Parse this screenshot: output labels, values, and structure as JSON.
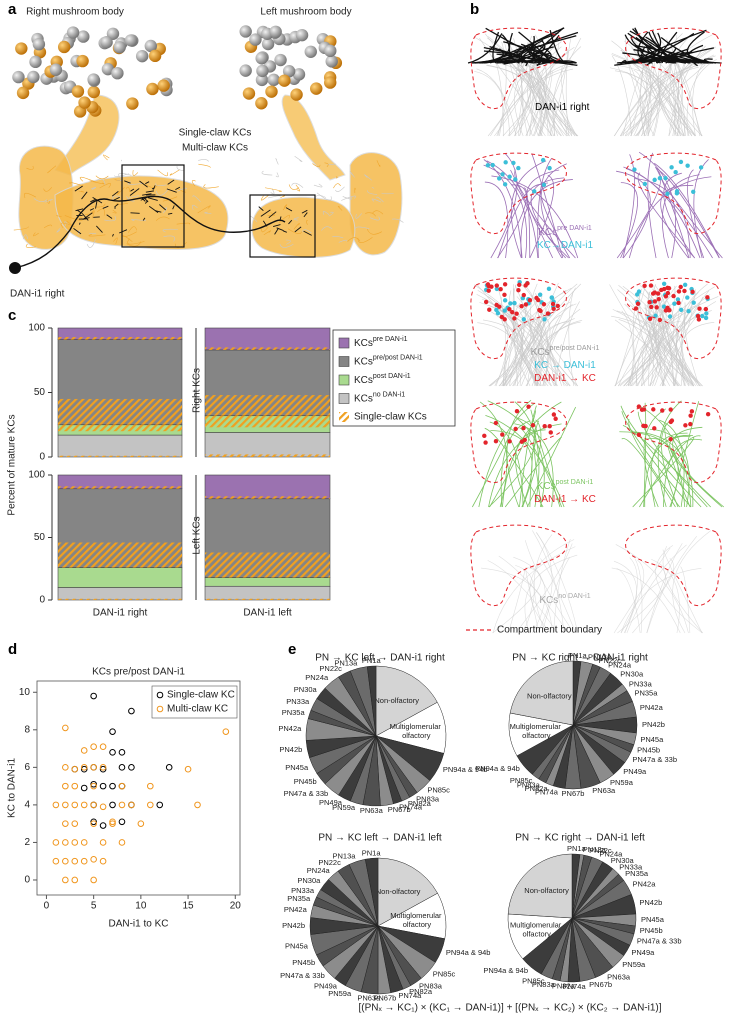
{
  "panels": {
    "a": {
      "letter": "a",
      "titles": [
        "Right mushroom body",
        "Left mushroom body"
      ],
      "legend": [
        "Single-claw KCs",
        "Multi-claw KCs"
      ],
      "legend_colors": [
        "#f0a020",
        "#a8a8a8"
      ],
      "neuron_label": "DAN-i1 right"
    },
    "b": {
      "letter": "b",
      "rows": [
        [
          {
            "text": "DAN-i1 right",
            "color": "#000000"
          }
        ],
        [
          {
            "text": "KCs",
            "sup": "pre DAN-i1",
            "color": "#9b6fb5"
          },
          {
            "text": "KC→DAN-i1",
            "color": "#3bbfd8"
          }
        ],
        [
          {
            "text": "KCs",
            "sup": "pre/post DAN-i1",
            "color": "#9a9a9a"
          },
          {
            "text": "KC → DAN-i1",
            "color": "#3bbfd8"
          },
          {
            "text": "DAN-i1 → KC",
            "color": "#e3242b"
          }
        ],
        [
          {
            "text": "KCs",
            "sup": "post DAN-i1",
            "color": "#7cc461"
          },
          {
            "text": "DAN-i1 → KC",
            "color": "#e3242b"
          }
        ],
        [
          {
            "text": "KCs",
            "sup": "no DAN-i1",
            "color": "#a8a8a8"
          }
        ]
      ],
      "boundary": "Compartment boundary"
    },
    "c": {
      "letter": "c"
    },
    "d": {
      "letter": "d"
    },
    "e": {
      "letter": "e",
      "formula": "[(PNₓ → KC₁) × (KC₁ → DAN-i1)] + [(PNₓ → KC₂) × (KC₂ → DAN-i1)]"
    }
  },
  "chart_data": [
    {
      "type": "stacked-bar",
      "ylabel": "Percent of mature KCs",
      "facets": [
        "Right KCs",
        "Left KCs"
      ],
      "categories": [
        "DAN-i1 right",
        "DAN-i1 left"
      ],
      "ylim": [
        0,
        100
      ],
      "yticks": [
        0,
        50,
        100
      ],
      "single_claw_name": "Single-claw KCs",
      "hatch_color": "#f0a020",
      "series": [
        {
          "name": "KCs",
          "superscript": "no DAN-i1",
          "color": "#c3c3c3",
          "values": [
            [
              17,
              19
            ],
            [
              10,
              11
            ]
          ],
          "single_claw": [
            [
              1,
              2
            ],
            [
              1,
              1
            ]
          ],
          "hatch_at": "bottom"
        },
        {
          "name": "KCs",
          "superscript": "post DAN-i1",
          "color": "#a9da8f",
          "values": [
            [
              8,
              13
            ],
            [
              16,
              7
            ]
          ],
          "single_claw": [
            [
              5,
              9
            ],
            [
              0,
              0
            ]
          ],
          "hatch_at": "top"
        },
        {
          "name": "KCs",
          "superscript": "pre/post DAN-i1",
          "color": "#858585",
          "values": [
            [
              66,
              51
            ],
            [
              63,
              63
            ]
          ],
          "single_claw": [
            [
              20,
              16
            ],
            [
              20,
              20
            ]
          ],
          "hatch_at": "bottom"
        },
        {
          "name": "KCs",
          "superscript": "pre DAN-i1",
          "color": "#9b72b0",
          "values": [
            [
              9,
              17
            ],
            [
              11,
              19
            ]
          ],
          "single_claw": [
            [
              2,
              2
            ],
            [
              2,
              2
            ]
          ],
          "hatch_at": "bottom"
        }
      ]
    },
    {
      "type": "scatter",
      "title": "KCs pre/post DAN-i1",
      "xlabel": "DAN-i1 to KC",
      "ylabel": "KC to DAN-i1",
      "xlim": [
        -1,
        20.5
      ],
      "ylim": [
        -0.8,
        10.6
      ],
      "xticks": [
        0,
        5,
        10,
        15,
        20
      ],
      "yticks": [
        0,
        2,
        4,
        6,
        8,
        10
      ],
      "legend": "upper right",
      "series": [
        {
          "name": "Single-claw KC",
          "color": "#000000",
          "x": [
            5,
            9,
            7,
            7,
            8,
            8,
            9,
            13,
            6,
            5,
            3,
            4,
            5,
            6,
            7,
            8,
            4,
            5,
            7,
            9,
            12,
            5,
            8,
            6
          ],
          "y": [
            9.8,
            9,
            7.9,
            6.8,
            6.8,
            6,
            6,
            6,
            5.9,
            6,
            5.9,
            5.9,
            5.1,
            5,
            5,
            5,
            4.9,
            4,
            4,
            4,
            4,
            3.1,
            3.1,
            2.9
          ]
        },
        {
          "name": "Multi-claw KC",
          "color": "#f0961e",
          "x": [
            2,
            19,
            5,
            6,
            4,
            2,
            4,
            5,
            6,
            3,
            15,
            2,
            3,
            5,
            8,
            11,
            1,
            2,
            3,
            4,
            5,
            6,
            8,
            9,
            11,
            16,
            2,
            3,
            5,
            7,
            10,
            1,
            2,
            3,
            4,
            6,
            8,
            1,
            2,
            3,
            4,
            6,
            2,
            3,
            5,
            5,
            7
          ],
          "y": [
            8.1,
            7.9,
            7.1,
            7.1,
            6.9,
            6,
            6,
            6,
            6,
            5.9,
            5.9,
            5,
            5,
            5,
            5,
            5,
            4,
            4,
            4,
            4,
            4,
            3.9,
            4,
            4,
            4,
            4,
            3,
            3,
            3,
            3,
            3,
            2,
            2,
            2,
            2,
            2,
            2,
            1,
            1,
            1,
            1,
            1,
            0,
            0,
            0,
            1.1,
            3.1
          ]
        }
      ]
    },
    {
      "type": "pie",
      "title": "PN → KC left → DAN-i1 right",
      "title_color": "#2f9a46",
      "categories": [
        "Non-olfactory",
        "Multiglomerular olfactory",
        "PN94a & 94b",
        "PN85c",
        "PN83a",
        "PN82a",
        "PN74a",
        "PN67b",
        "PN63a",
        "PN59a",
        "PN49a",
        "PN47a & 33b",
        "PN45b",
        "PN45a",
        "PN42b",
        "PN42a",
        "PN35a",
        "PN33a",
        "PN30a",
        "PN24a",
        "PN22c",
        "PN13a",
        "PN1a"
      ],
      "values": [
        17,
        12,
        7,
        4,
        2,
        2,
        2,
        3,
        4,
        3,
        3,
        4,
        3,
        4,
        4,
        5,
        2,
        3,
        3,
        4,
        3,
        4,
        2
      ],
      "colors": [
        "#d4d4d4",
        "#ffffff",
        "#3c3c3c",
        "#8c8c8c",
        "#505050",
        "#6b6b6b",
        "#3c3c3c",
        "#8c8c8c",
        "#505050",
        "#6b6b6b",
        "#3c3c3c",
        "#8c8c8c",
        "#505050",
        "#6b6b6b",
        "#3c3c3c",
        "#8c8c8c",
        "#505050",
        "#6b6b6b",
        "#3c3c3c",
        "#8c8c8c",
        "#505050",
        "#6b6b6b",
        "#3c3c3c"
      ]
    },
    {
      "type": "pie",
      "title": "PN → KC right → DAN-i1 right",
      "title_color": "#e3242b",
      "categories": [
        "PN1a",
        "PN13a",
        "PN22c",
        "PN24a",
        "PN30a",
        "PN33a",
        "PN35a",
        "PN42a",
        "PN42b",
        "PN45a",
        "PN45b",
        "PN47a & 33b",
        "PN49a",
        "PN59a",
        "PN63a",
        "PN67b",
        "PN74a",
        "PN82a",
        "PN83a",
        "PN85c",
        "PN94a & 94b",
        "Multiglomerular olfactory",
        "Non-olfactory"
      ],
      "values": [
        2,
        3,
        2,
        3,
        4,
        2,
        3,
        4,
        4,
        3,
        2,
        3,
        4,
        4,
        5,
        4,
        3,
        2,
        2,
        2,
        6,
        11,
        22
      ],
      "colors": [
        "#3c3c3c",
        "#8c8c8c",
        "#505050",
        "#6b6b6b",
        "#3c3c3c",
        "#8c8c8c",
        "#505050",
        "#6b6b6b",
        "#3c3c3c",
        "#8c8c8c",
        "#505050",
        "#6b6b6b",
        "#3c3c3c",
        "#8c8c8c",
        "#505050",
        "#6b6b6b",
        "#3c3c3c",
        "#8c8c8c",
        "#505050",
        "#6b6b6b",
        "#3c3c3c",
        "#ffffff",
        "#d4d4d4"
      ]
    },
    {
      "type": "pie",
      "title": "PN → KC left → DAN-i1 left",
      "title_color": "#000000",
      "categories": [
        "Non-olfactory",
        "Multiglomerular olfactory",
        "PN94a & 94b",
        "PN85c",
        "PN83a",
        "PN82a",
        "PN74a",
        "PN67b",
        "PN63a",
        "PN59a",
        "PN49a",
        "PN47a & 33b",
        "PN45b",
        "PN45a",
        "PN42b",
        "PN42a",
        "PN35a",
        "PN33a",
        "PN30a",
        "PN24a",
        "PN22c",
        "PN13a",
        "PN1a"
      ],
      "values": [
        17,
        11,
        6,
        5,
        3,
        2,
        3,
        3,
        4,
        4,
        3,
        4,
        3,
        5,
        4,
        3,
        2,
        2,
        3,
        3,
        3,
        4,
        3
      ],
      "colors": [
        "#d4d4d4",
        "#ffffff",
        "#3c3c3c",
        "#8c8c8c",
        "#505050",
        "#6b6b6b",
        "#3c3c3c",
        "#8c8c8c",
        "#505050",
        "#6b6b6b",
        "#3c3c3c",
        "#8c8c8c",
        "#505050",
        "#6b6b6b",
        "#3c3c3c",
        "#8c8c8c",
        "#505050",
        "#6b6b6b",
        "#3c3c3c",
        "#8c8c8c",
        "#505050",
        "#6b6b6b",
        "#3c3c3c"
      ]
    },
    {
      "type": "pie",
      "title": "PN → KC right → DAN-i1 left",
      "title_color": "#4057a8",
      "categories": [
        "PN1a",
        "PN13a",
        "PN22c",
        "PN24a",
        "PN30a",
        "PN33a",
        "PN35a",
        "PN42a",
        "PN42b",
        "PN45a",
        "PN45b",
        "PN47a & 33b",
        "PN49a",
        "PN59a",
        "PN63a",
        "PN67b",
        "PN74a",
        "PN82a",
        "PN83a",
        "PN85c",
        "PN94a & 94b",
        "Multiglomerular olfactory",
        "Non-olfactory"
      ],
      "values": [
        2,
        1,
        2,
        3,
        3,
        2,
        2,
        4,
        5,
        3,
        2,
        3,
        3,
        4,
        5,
        4,
        3,
        2,
        2,
        3,
        6,
        12,
        24
      ],
      "colors": [
        "#3c3c3c",
        "#8c8c8c",
        "#505050",
        "#6b6b6b",
        "#3c3c3c",
        "#8c8c8c",
        "#505050",
        "#6b6b6b",
        "#3c3c3c",
        "#8c8c8c",
        "#505050",
        "#6b6b6b",
        "#3c3c3c",
        "#8c8c8c",
        "#505050",
        "#6b6b6b",
        "#3c3c3c",
        "#8c8c8c",
        "#505050",
        "#6b6b6b",
        "#3c3c3c",
        "#ffffff",
        "#d4d4d4"
      ]
    }
  ]
}
